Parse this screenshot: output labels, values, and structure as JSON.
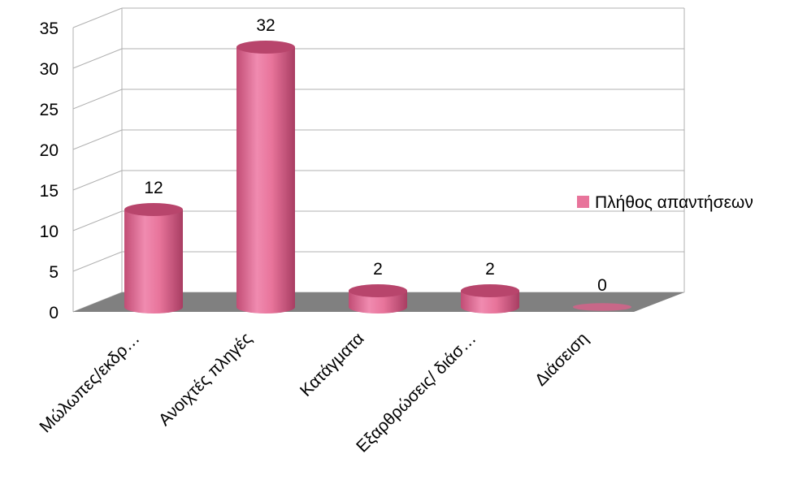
{
  "chart_data": {
    "type": "bar",
    "style": "3d-cylinder",
    "categories": [
      "Μώλωπες/εκδρ…",
      "Ανοιχτές πληγές",
      "Κατάγματα",
      "Εξαρθρώσεις/ διάσ…",
      "Διάσειση"
    ],
    "series": [
      {
        "name": "Πλήθος απαντήσεων",
        "values": [
          12,
          32,
          2,
          2,
          0
        ]
      }
    ],
    "data_labels": [
      "12",
      "32",
      "2",
      "2",
      "0"
    ],
    "yticks": [
      "0",
      "5",
      "10",
      "15",
      "20",
      "25",
      "30",
      "35"
    ],
    "ylim": [
      0,
      35
    ],
    "grid": true,
    "legend_position": "right",
    "colors": {
      "bar": "#e8749b",
      "bar_dark": "#b8456c",
      "floor": "#808080",
      "grid": "#b0b0b0"
    }
  }
}
